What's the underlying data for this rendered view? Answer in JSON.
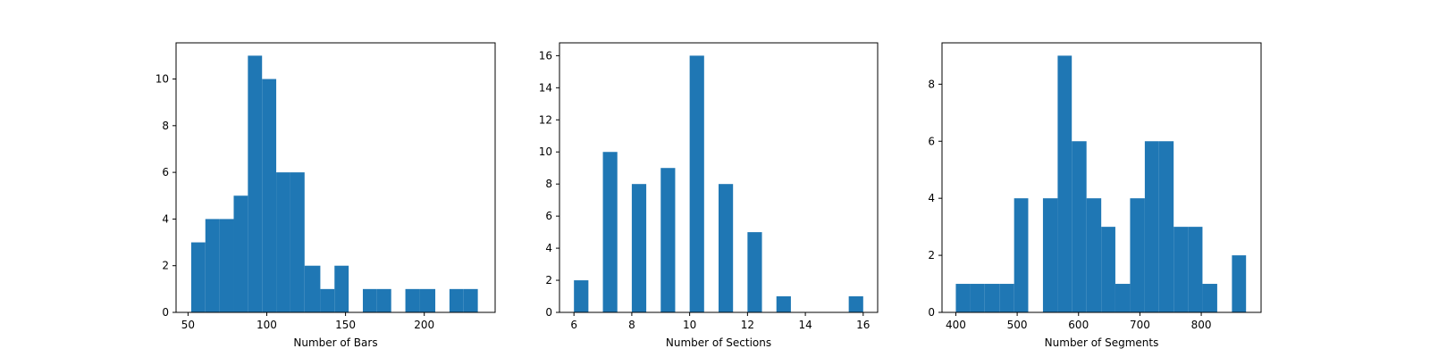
{
  "colors": {
    "bar": "#1f77b4",
    "axes": "#000000",
    "background": "#ffffff"
  },
  "chart_data": [
    {
      "type": "bar",
      "xlabel": "Number of Bars",
      "ylabel": "",
      "xlim": [
        42.4,
        245.0
      ],
      "ylim": [
        0,
        11.55
      ],
      "xticks": [
        50,
        100,
        150,
        200
      ],
      "yticks": [
        0,
        2,
        4,
        6,
        8,
        10
      ],
      "bins": [
        {
          "x0": 52,
          "x1": 61,
          "count": 3
        },
        {
          "x0": 61,
          "x1": 70,
          "count": 4
        },
        {
          "x0": 70,
          "x1": 79,
          "count": 4
        },
        {
          "x0": 79,
          "x1": 88,
          "count": 5
        },
        {
          "x0": 88,
          "x1": 97,
          "count": 11
        },
        {
          "x0": 97,
          "x1": 106,
          "count": 10
        },
        {
          "x0": 106,
          "x1": 115,
          "count": 6
        },
        {
          "x0": 115,
          "x1": 124,
          "count": 6
        },
        {
          "x0": 124,
          "x1": 134,
          "count": 2
        },
        {
          "x0": 134,
          "x1": 143,
          "count": 1
        },
        {
          "x0": 143,
          "x1": 152,
          "count": 2
        },
        {
          "x0": 152,
          "x1": 161,
          "count": 0
        },
        {
          "x0": 161,
          "x1": 170,
          "count": 1
        },
        {
          "x0": 170,
          "x1": 179,
          "count": 1
        },
        {
          "x0": 179,
          "x1": 188,
          "count": 0
        },
        {
          "x0": 188,
          "x1": 197,
          "count": 1
        },
        {
          "x0": 197,
          "x1": 207,
          "count": 1
        },
        {
          "x0": 207,
          "x1": 216,
          "count": 0
        },
        {
          "x0": 216,
          "x1": 225,
          "count": 1
        },
        {
          "x0": 225,
          "x1": 234,
          "count": 1
        }
      ]
    },
    {
      "type": "bar",
      "xlabel": "Number of Sections",
      "ylabel": "",
      "xlim": [
        5.5,
        16.5
      ],
      "ylim": [
        0,
        16.8
      ],
      "xticks": [
        6,
        8,
        10,
        12,
        14,
        16
      ],
      "yticks": [
        0,
        2,
        4,
        6,
        8,
        10,
        12,
        14,
        16
      ],
      "bins": [
        {
          "x0": 6.0,
          "x1": 6.5,
          "count": 2
        },
        {
          "x0": 7.0,
          "x1": 7.5,
          "count": 10
        },
        {
          "x0": 8.0,
          "x1": 8.5,
          "count": 8
        },
        {
          "x0": 9.0,
          "x1": 9.5,
          "count": 9
        },
        {
          "x0": 10.0,
          "x1": 10.5,
          "count": 16
        },
        {
          "x0": 11.0,
          "x1": 11.5,
          "count": 8
        },
        {
          "x0": 12.0,
          "x1": 12.5,
          "count": 5
        },
        {
          "x0": 13.0,
          "x1": 13.5,
          "count": 1
        },
        {
          "x0": 15.5,
          "x1": 16.0,
          "count": 1
        }
      ]
    },
    {
      "type": "bar",
      "xlabel": "Number of Segments",
      "ylabel": "",
      "xlim": [
        377.5,
        897.5
      ],
      "ylim": [
        0,
        9.45
      ],
      "xticks": [
        400,
        500,
        600,
        700,
        800
      ],
      "yticks": [
        0,
        2,
        4,
        6,
        8
      ],
      "bins": [
        {
          "x0": 400,
          "x1": 424,
          "count": 1
        },
        {
          "x0": 424,
          "x1": 447,
          "count": 1
        },
        {
          "x0": 447,
          "x1": 471,
          "count": 1
        },
        {
          "x0": 471,
          "x1": 495,
          "count": 1
        },
        {
          "x0": 495,
          "x1": 518,
          "count": 4
        },
        {
          "x0": 518,
          "x1": 542,
          "count": 0
        },
        {
          "x0": 542,
          "x1": 566,
          "count": 4
        },
        {
          "x0": 566,
          "x1": 589,
          "count": 9
        },
        {
          "x0": 589,
          "x1": 613,
          "count": 6
        },
        {
          "x0": 613,
          "x1": 637,
          "count": 4
        },
        {
          "x0": 637,
          "x1": 660,
          "count": 3
        },
        {
          "x0": 660,
          "x1": 684,
          "count": 1
        },
        {
          "x0": 684,
          "x1": 708,
          "count": 4
        },
        {
          "x0": 708,
          "x1": 731,
          "count": 6
        },
        {
          "x0": 731,
          "x1": 755,
          "count": 6
        },
        {
          "x0": 755,
          "x1": 779,
          "count": 3
        },
        {
          "x0": 779,
          "x1": 802,
          "count": 3
        },
        {
          "x0": 802,
          "x1": 826,
          "count": 1
        },
        {
          "x0": 826,
          "x1": 850,
          "count": 0
        },
        {
          "x0": 850,
          "x1": 873,
          "count": 2
        }
      ]
    }
  ]
}
